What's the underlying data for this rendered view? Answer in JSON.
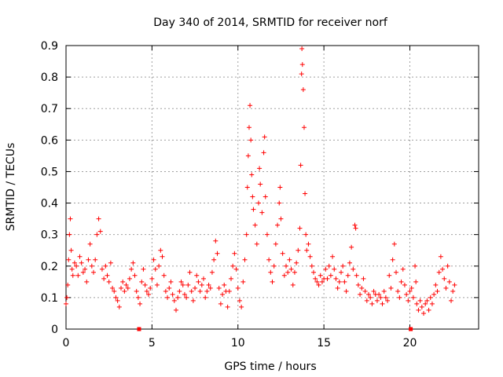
{
  "chart_data": {
    "type": "scatter",
    "title": "Day 340 of 2014, SRMTID for receiver norf",
    "xlabel": "GPS time / hours",
    "ylabel": "SRMTID / TECUs",
    "xlim": [
      0,
      24
    ],
    "ylim": [
      0,
      0.9
    ],
    "xticks": [
      0,
      5,
      10,
      15,
      20
    ],
    "yticks": [
      0,
      0.1,
      0.2,
      0.3,
      0.4,
      0.5,
      0.6,
      0.7,
      0.8,
      0.9
    ],
    "grid": true,
    "marker": "+",
    "color": "#ff0000",
    "series": [
      {
        "name": "SRMTID",
        "points": [
          [
            0.0,
            0.08
          ],
          [
            0.05,
            0.1
          ],
          [
            0.1,
            0.14
          ],
          [
            0.15,
            0.22
          ],
          [
            0.2,
            0.3
          ],
          [
            0.25,
            0.35
          ],
          [
            0.3,
            0.25
          ],
          [
            0.35,
            0.19
          ],
          [
            0.4,
            0.17
          ],
          [
            0.5,
            0.21
          ],
          [
            0.6,
            0.2
          ],
          [
            0.7,
            0.17
          ],
          [
            0.8,
            0.23
          ],
          [
            0.9,
            0.21
          ],
          [
            1.0,
            0.18
          ],
          [
            1.1,
            0.19
          ],
          [
            1.2,
            0.15
          ],
          [
            1.3,
            0.22
          ],
          [
            1.4,
            0.27
          ],
          [
            1.5,
            0.2
          ],
          [
            1.6,
            0.18
          ],
          [
            1.7,
            0.22
          ],
          [
            1.8,
            0.3
          ],
          [
            1.9,
            0.35
          ],
          [
            2.0,
            0.31
          ],
          [
            2.1,
            0.19
          ],
          [
            2.2,
            0.16
          ],
          [
            2.3,
            0.2
          ],
          [
            2.4,
            0.17
          ],
          [
            2.5,
            0.15
          ],
          [
            2.6,
            0.21
          ],
          [
            2.7,
            0.13
          ],
          [
            2.8,
            0.12
          ],
          [
            2.9,
            0.1
          ],
          [
            3.0,
            0.09
          ],
          [
            3.1,
            0.07
          ],
          [
            3.2,
            0.13
          ],
          [
            3.3,
            0.15
          ],
          [
            3.4,
            0.12
          ],
          [
            3.5,
            0.14
          ],
          [
            3.6,
            0.13
          ],
          [
            3.7,
            0.16
          ],
          [
            3.8,
            0.19
          ],
          [
            3.9,
            0.21
          ],
          [
            4.0,
            0.17
          ],
          [
            4.1,
            0.12
          ],
          [
            4.2,
            0.1
          ],
          [
            4.3,
            0.08
          ],
          [
            4.4,
            0.15
          ],
          [
            4.5,
            0.19
          ],
          [
            4.6,
            0.14
          ],
          [
            4.7,
            0.12
          ],
          [
            4.8,
            0.11
          ],
          [
            4.9,
            0.13
          ],
          [
            5.0,
            0.16
          ],
          [
            5.1,
            0.22
          ],
          [
            5.2,
            0.19
          ],
          [
            5.3,
            0.14
          ],
          [
            5.4,
            0.2
          ],
          [
            5.5,
            0.25
          ],
          [
            5.6,
            0.23
          ],
          [
            5.7,
            0.17
          ],
          [
            5.8,
            0.12
          ],
          [
            5.9,
            0.1
          ],
          [
            6.0,
            0.13
          ],
          [
            6.1,
            0.15
          ],
          [
            6.2,
            0.11
          ],
          [
            6.3,
            0.09
          ],
          [
            6.4,
            0.06
          ],
          [
            6.5,
            0.1
          ],
          [
            6.6,
            0.12
          ],
          [
            6.7,
            0.15
          ],
          [
            6.8,
            0.14
          ],
          [
            6.9,
            0.11
          ],
          [
            7.0,
            0.1
          ],
          [
            7.1,
            0.14
          ],
          [
            7.2,
            0.18
          ],
          [
            7.3,
            0.12
          ],
          [
            7.4,
            0.09
          ],
          [
            7.5,
            0.13
          ],
          [
            7.6,
            0.17
          ],
          [
            7.7,
            0.15
          ],
          [
            7.8,
            0.12
          ],
          [
            7.9,
            0.14
          ],
          [
            8.0,
            0.16
          ],
          [
            8.1,
            0.1
          ],
          [
            8.2,
            0.12
          ],
          [
            8.3,
            0.14
          ],
          [
            8.4,
            0.13
          ],
          [
            8.5,
            0.18
          ],
          [
            8.6,
            0.22
          ],
          [
            8.7,
            0.28
          ],
          [
            8.8,
            0.24
          ],
          [
            8.9,
            0.13
          ],
          [
            9.0,
            0.08
          ],
          [
            9.1,
            0.11
          ],
          [
            9.2,
            0.14
          ],
          [
            9.3,
            0.12
          ],
          [
            9.4,
            0.07
          ],
          [
            9.5,
            0.12
          ],
          [
            9.6,
            0.16
          ],
          [
            9.7,
            0.2
          ],
          [
            9.8,
            0.24
          ],
          [
            9.9,
            0.19
          ],
          [
            10.0,
            0.13
          ],
          [
            10.1,
            0.09
          ],
          [
            10.2,
            0.07
          ],
          [
            10.3,
            0.15
          ],
          [
            10.4,
            0.22
          ],
          [
            10.5,
            0.3
          ],
          [
            10.55,
            0.45
          ],
          [
            10.6,
            0.55
          ],
          [
            10.65,
            0.64
          ],
          [
            10.7,
            0.71
          ],
          [
            10.75,
            0.6
          ],
          [
            10.8,
            0.49
          ],
          [
            10.85,
            0.42
          ],
          [
            10.9,
            0.38
          ],
          [
            11.0,
            0.33
          ],
          [
            11.1,
            0.27
          ],
          [
            11.2,
            0.4
          ],
          [
            11.25,
            0.51
          ],
          [
            11.3,
            0.46
          ],
          [
            11.4,
            0.37
          ],
          [
            11.5,
            0.56
          ],
          [
            11.55,
            0.61
          ],
          [
            11.6,
            0.42
          ],
          [
            11.7,
            0.3
          ],
          [
            11.8,
            0.22
          ],
          [
            11.9,
            0.18
          ],
          [
            12.0,
            0.15
          ],
          [
            12.1,
            0.2
          ],
          [
            12.2,
            0.27
          ],
          [
            12.3,
            0.33
          ],
          [
            12.4,
            0.4
          ],
          [
            12.45,
            0.45
          ],
          [
            12.5,
            0.35
          ],
          [
            12.6,
            0.24
          ],
          [
            12.7,
            0.17
          ],
          [
            12.8,
            0.2
          ],
          [
            12.9,
            0.18
          ],
          [
            13.0,
            0.22
          ],
          [
            13.1,
            0.19
          ],
          [
            13.2,
            0.14
          ],
          [
            13.3,
            0.18
          ],
          [
            13.4,
            0.21
          ],
          [
            13.5,
            0.25
          ],
          [
            13.6,
            0.32
          ],
          [
            13.65,
            0.52
          ],
          [
            13.7,
            0.81
          ],
          [
            13.72,
            0.89
          ],
          [
            13.75,
            0.84
          ],
          [
            13.8,
            0.76
          ],
          [
            13.85,
            0.64
          ],
          [
            13.9,
            0.43
          ],
          [
            13.95,
            0.3
          ],
          [
            14.0,
            0.25
          ],
          [
            14.1,
            0.27
          ],
          [
            14.2,
            0.23
          ],
          [
            14.3,
            0.2
          ],
          [
            14.4,
            0.18
          ],
          [
            14.5,
            0.16
          ],
          [
            14.6,
            0.15
          ],
          [
            14.7,
            0.14
          ],
          [
            14.8,
            0.17
          ],
          [
            14.9,
            0.15
          ],
          [
            15.0,
            0.16
          ],
          [
            15.1,
            0.19
          ],
          [
            15.2,
            0.16
          ],
          [
            15.3,
            0.2
          ],
          [
            15.4,
            0.17
          ],
          [
            15.5,
            0.23
          ],
          [
            15.6,
            0.19
          ],
          [
            15.7,
            0.16
          ],
          [
            15.8,
            0.13
          ],
          [
            15.9,
            0.15
          ],
          [
            16.0,
            0.18
          ],
          [
            16.1,
            0.2
          ],
          [
            16.2,
            0.15
          ],
          [
            16.3,
            0.12
          ],
          [
            16.4,
            0.17
          ],
          [
            16.5,
            0.21
          ],
          [
            16.6,
            0.26
          ],
          [
            16.7,
            0.19
          ],
          [
            16.8,
            0.33
          ],
          [
            16.85,
            0.32
          ],
          [
            16.9,
            0.17
          ],
          [
            17.0,
            0.14
          ],
          [
            17.1,
            0.11
          ],
          [
            17.2,
            0.13
          ],
          [
            17.3,
            0.16
          ],
          [
            17.4,
            0.12
          ],
          [
            17.5,
            0.09
          ],
          [
            17.6,
            0.11
          ],
          [
            17.7,
            0.1
          ],
          [
            17.8,
            0.08
          ],
          [
            17.9,
            0.12
          ],
          [
            18.0,
            0.11
          ],
          [
            18.1,
            0.09
          ],
          [
            18.2,
            0.11
          ],
          [
            18.3,
            0.1
          ],
          [
            18.4,
            0.08
          ],
          [
            18.5,
            0.12
          ],
          [
            18.6,
            0.1
          ],
          [
            18.7,
            0.09
          ],
          [
            18.8,
            0.17
          ],
          [
            18.9,
            0.13
          ],
          [
            19.0,
            0.22
          ],
          [
            19.1,
            0.27
          ],
          [
            19.2,
            0.18
          ],
          [
            19.3,
            0.12
          ],
          [
            19.4,
            0.1
          ],
          [
            19.5,
            0.15
          ],
          [
            19.6,
            0.19
          ],
          [
            19.7,
            0.14
          ],
          [
            19.8,
            0.11
          ],
          [
            19.9,
            0.09
          ],
          [
            20.0,
            0.12
          ],
          [
            20.1,
            0.13
          ],
          [
            20.2,
            0.1
          ],
          [
            20.3,
            0.2
          ],
          [
            20.35,
            0.15
          ],
          [
            20.4,
            0.08
          ],
          [
            20.5,
            0.06
          ],
          [
            20.6,
            0.09
          ],
          [
            20.7,
            0.07
          ],
          [
            20.8,
            0.05
          ],
          [
            20.9,
            0.08
          ],
          [
            21.0,
            0.09
          ],
          [
            21.1,
            0.06
          ],
          [
            21.2,
            0.1
          ],
          [
            21.3,
            0.08
          ],
          [
            21.4,
            0.11
          ],
          [
            21.5,
            0.14
          ],
          [
            21.6,
            0.12
          ],
          [
            21.7,
            0.18
          ],
          [
            21.8,
            0.23
          ],
          [
            21.9,
            0.19
          ],
          [
            22.0,
            0.16
          ],
          [
            22.1,
            0.13
          ],
          [
            22.2,
            0.2
          ],
          [
            22.3,
            0.15
          ],
          [
            22.4,
            0.09
          ],
          [
            22.5,
            0.12
          ],
          [
            22.6,
            0.14
          ]
        ]
      }
    ],
    "gap_markers_x": [
      4.25,
      20.05
    ]
  }
}
